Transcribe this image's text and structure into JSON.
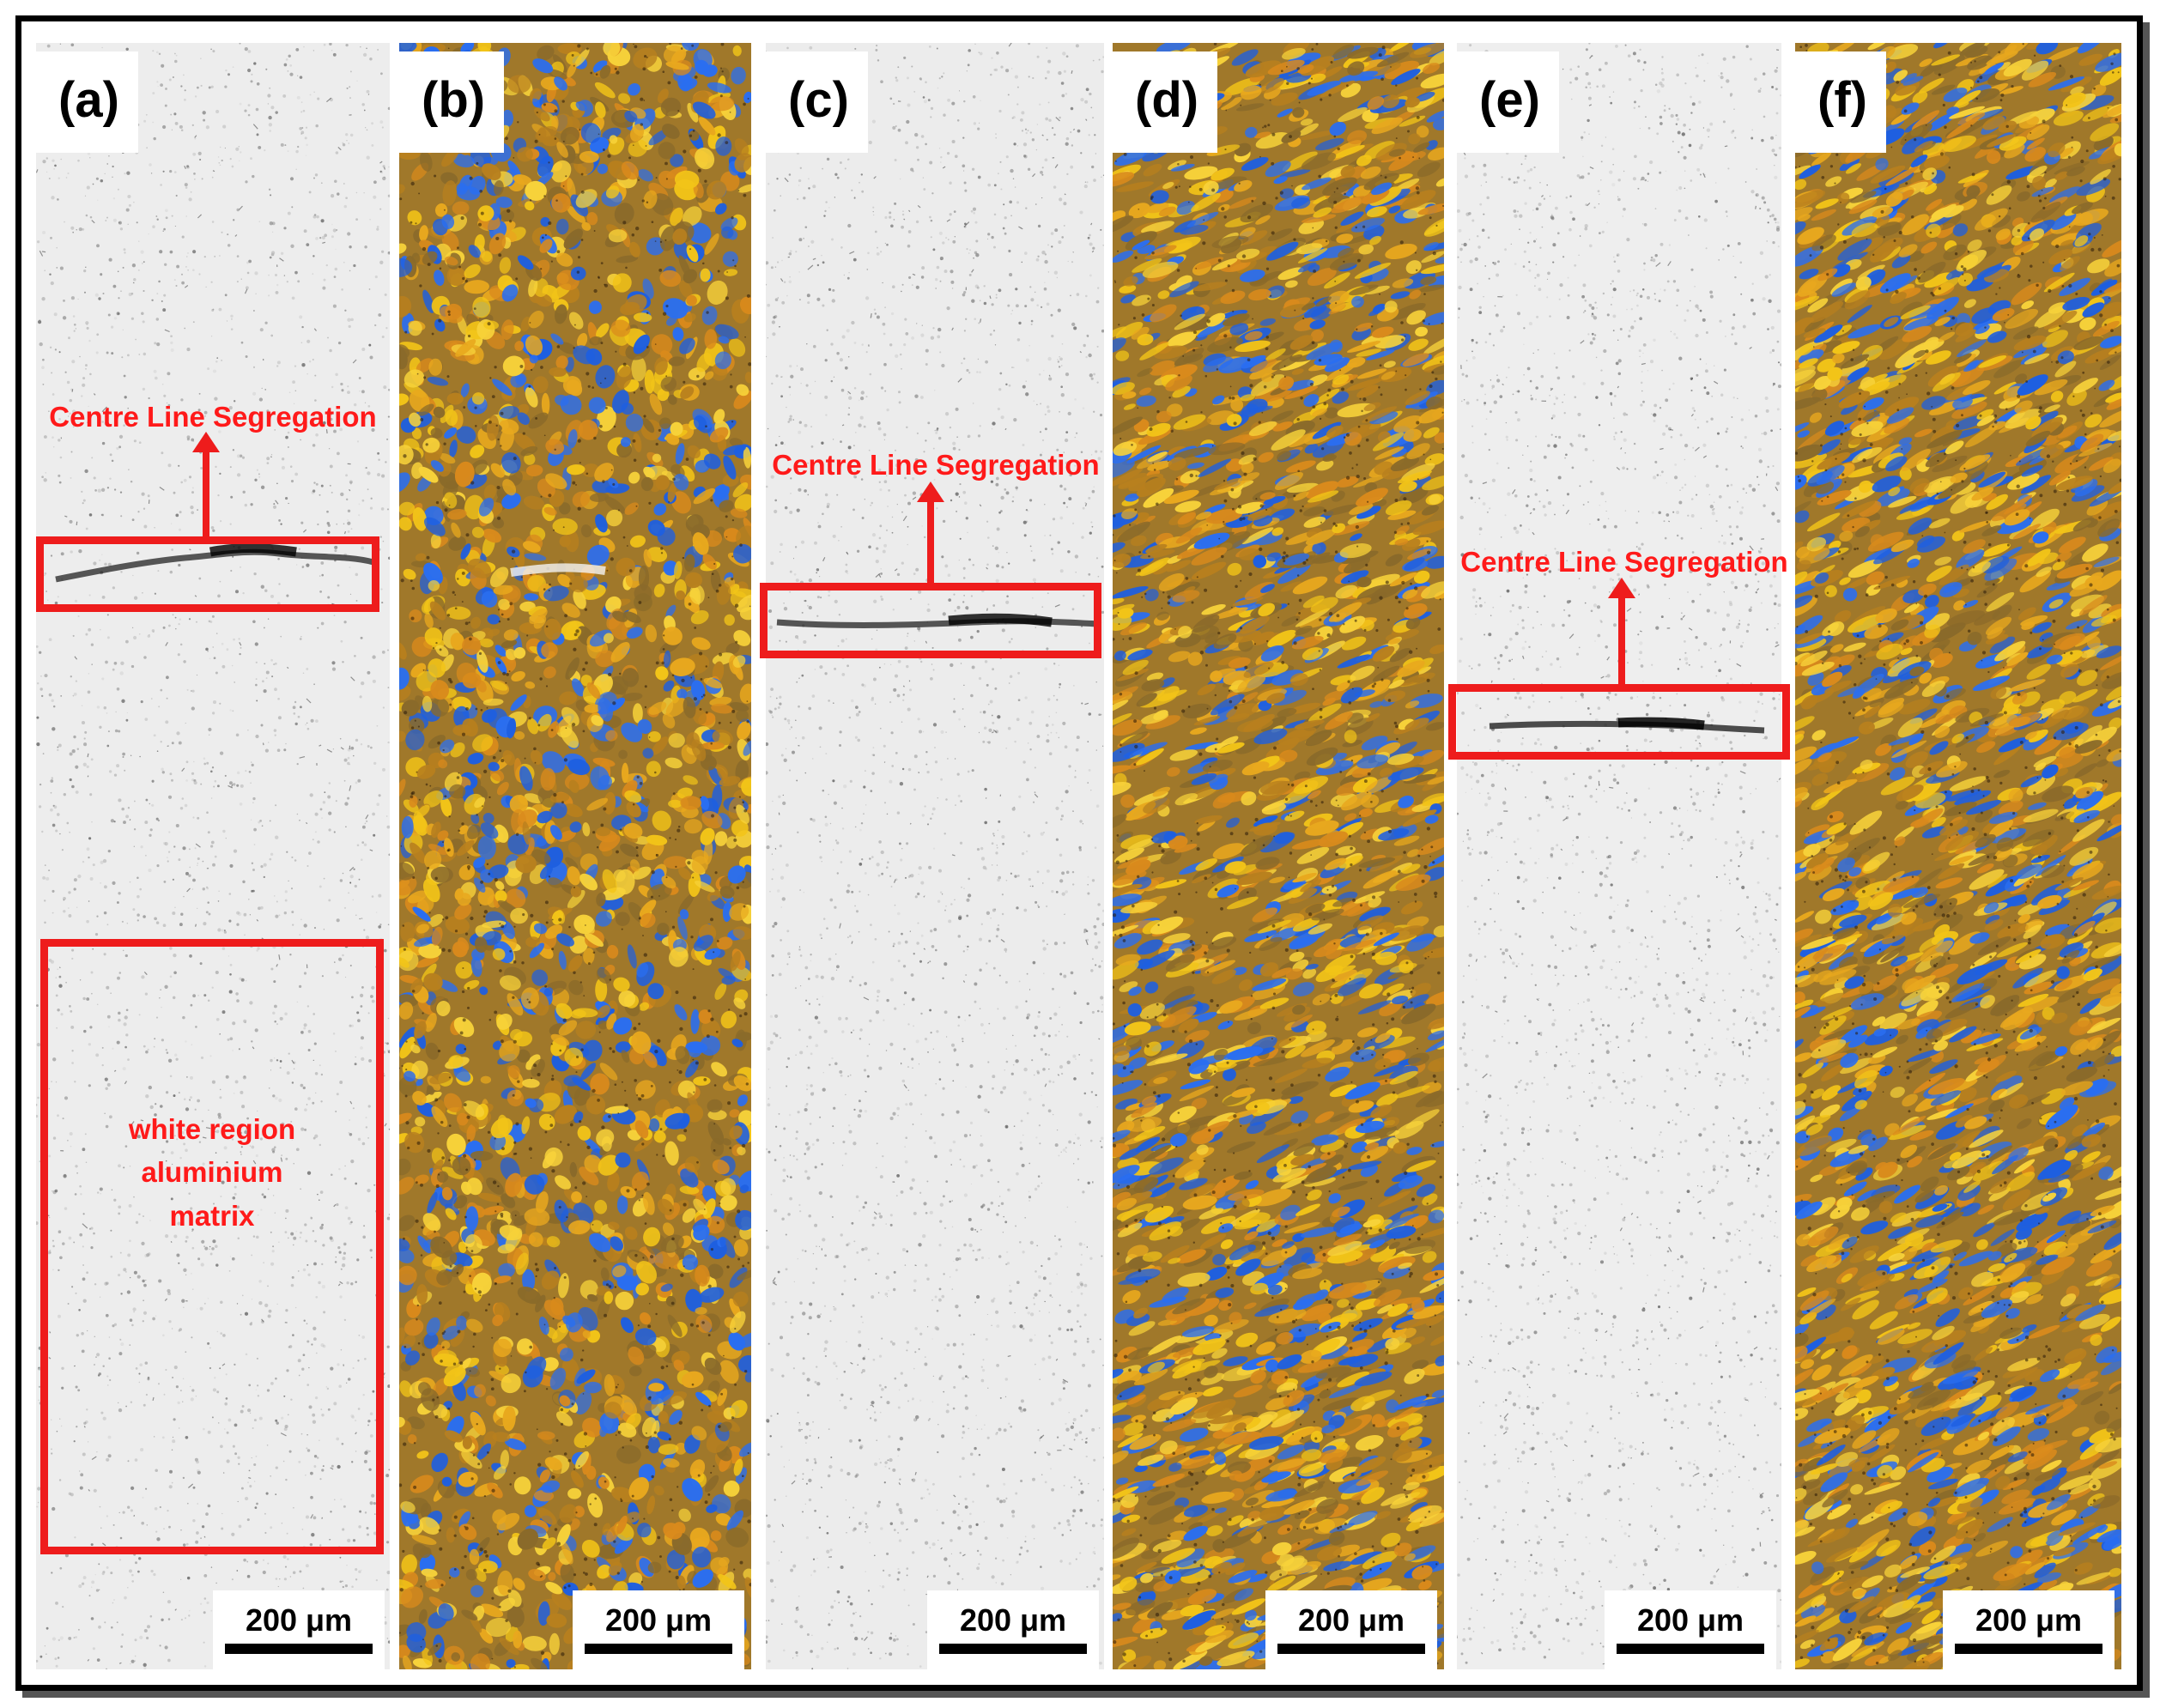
{
  "panels": [
    {
      "label": "(a)",
      "kind": "grey",
      "scale": "200 μm"
    },
    {
      "label": "(b)",
      "kind": "color",
      "scale": "200 μm"
    },
    {
      "label": "(c)",
      "kind": "grey",
      "scale": "200 μm"
    },
    {
      "label": "(d)",
      "kind": "color",
      "scale": "200 μm"
    },
    {
      "label": "(e)",
      "kind": "grey",
      "scale": "200 μm"
    },
    {
      "label": "(f)",
      "kind": "color",
      "scale": "200 μm"
    }
  ],
  "annotations": {
    "segregation_label": "Centre Line Segregation",
    "matrix_line1": "white region",
    "matrix_line2": "aluminium",
    "matrix_line3": "matrix"
  },
  "colors": {
    "annotation_red": "#ee1c1c",
    "grain_yellow": "#f2c418",
    "grain_orange": "#d98a1c",
    "grain_blue": "#1e5fe0",
    "grain_brown": "#8a6a2a",
    "matrix_grey": "#ededed"
  }
}
